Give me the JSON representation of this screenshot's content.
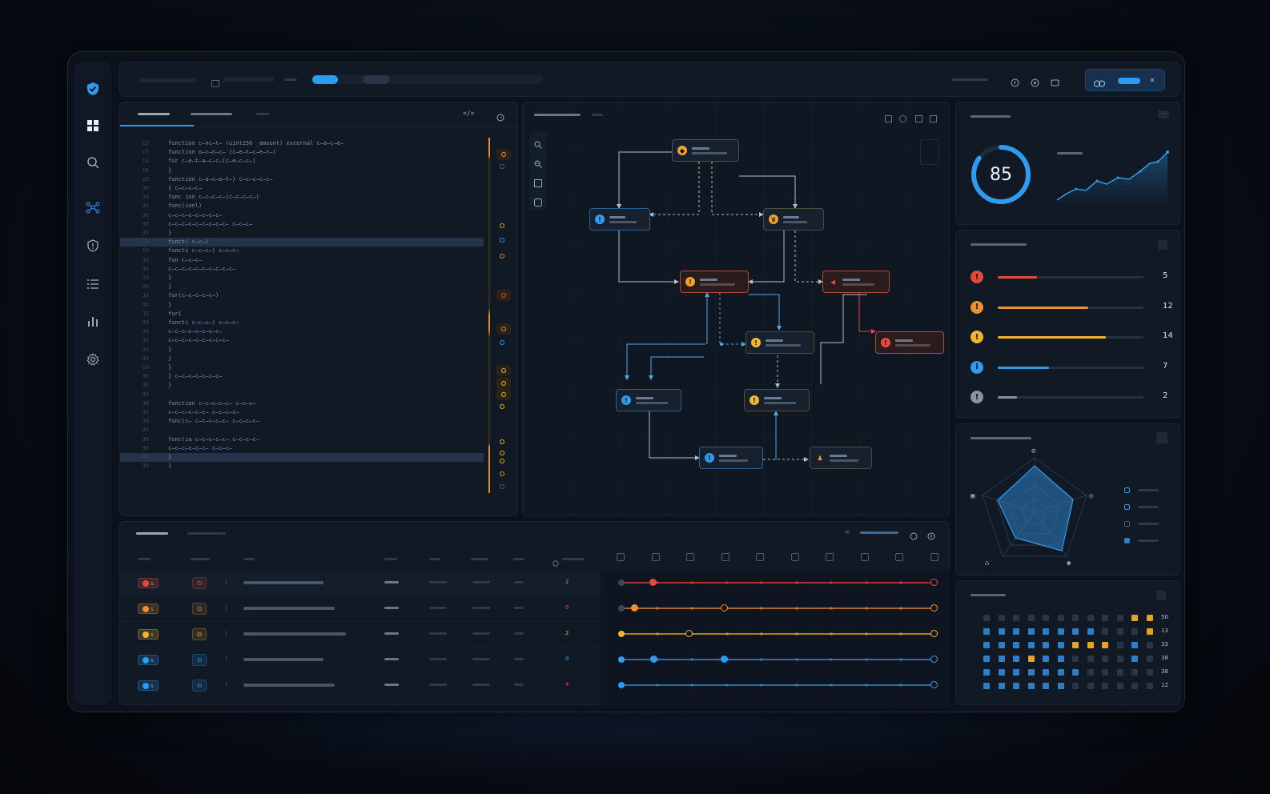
{
  "app": {
    "title": ""
  },
  "colors": {
    "accent": "#2d9cf0",
    "critical": "#e5493a",
    "high": "#f0922b",
    "medium": "#f2b52c",
    "low": "#2d9cf0",
    "info": "#8a93a3"
  },
  "sidebar": {
    "items": [
      {
        "icon": "grid-icon"
      },
      {
        "icon": "search-icon"
      },
      {
        "icon": "graph-icon"
      },
      {
        "icon": "shield-icon"
      },
      {
        "icon": "list-icon"
      },
      {
        "icon": "bar-chart-icon"
      },
      {
        "icon": "gear-icon"
      }
    ]
  },
  "editor": {
    "lines": [
      {
        "n": "15",
        "t": "function c̶nc̶t̶ (uint256 _amount) external c̶a̶c̶e̶"
      },
      {
        "n": "15",
        "t": "    function o̶c̶n̶c̶ (c̶e̶t̶c̶e̶r̶)"
      },
      {
        "n": "18",
        "t": "    fur c̶e̶t̶a̶c̶c̶(c̶e̶c̶c̶)"
      },
      {
        "n": "18",
        "t": "    }"
      },
      {
        "n": "18",
        "t": "    function c̶a̶c̶e̶t̶)  c̶c̶c̶c̶c̶"
      },
      {
        "n": "30",
        "t": "      {  c̶c̶c̶c̶"
      },
      {
        "n": "30",
        "t": "        func ion c̶c̶c̶c̶(c̶c̶c̶c̶)"
      },
      {
        "n": "30",
        "t": "          func(ionl)"
      },
      {
        "n": "30",
        "t": "            c̶c̶c̶c̶c̶c̶c̶c̶"
      },
      {
        "n": "38",
        "t": "            c̶c̶c̶c̶c̶c̶c̶c̶c̶  c̶c̶c̶"
      },
      {
        "n": "35",
        "t": "          }"
      },
      {
        "n": "18",
        "t": "          funct( c̶c̶)"
      },
      {
        "n": "15",
        "t": "            functi  c̶c̶c̶)  c̶c̶c̶"
      },
      {
        "n": "38",
        "t": "            fun c̶c̶c̶"
      },
      {
        "n": "38",
        "t": "              c̶c̶c̶c̶c̶c̶c̶c̶c̶c̶"
      },
      {
        "n": "38",
        "t": "            }"
      },
      {
        "n": "30",
        "t": "            }"
      },
      {
        "n": "38",
        "t": "            fur(c̶c̶c̶c̶c̶)"
      },
      {
        "n": "38",
        "t": "            }"
      },
      {
        "n": "35",
        "t": "          fur{"
      },
      {
        "n": "38",
        "t": "            functi  c̶c̶c̶)  c̶c̶c̶"
      },
      {
        "n": "30",
        "t": "              c̶c̶c̶c̶c̶c̶c̶c̶"
      },
      {
        "n": "30",
        "t": "              c̶c̶c̶c̶c̶c̶c̶c̶c̶"
      },
      {
        "n": "38",
        "t": "            }"
      },
      {
        "n": "38",
        "t": "          }"
      },
      {
        "n": "18",
        "t": "        }"
      },
      {
        "n": "30",
        "t": "        }   c̶c̶c̶c̶c̶c̶c̶"
      },
      {
        "n": "30",
        "t": "      }"
      },
      {
        "n": "38",
        "t": ""
      },
      {
        "n": "38",
        "t": "      function c̶c̶c̶c̶c̶  c̶c̶c̶"
      },
      {
        "n": "35",
        "t": "        c̶c̶c̶c̶c̶c̶  c̶c̶c̶c̶"
      },
      {
        "n": "38",
        "t": "        func(c̶  c̶c̶c̶c̶c̶  c̶c̶c̶c̶"
      },
      {
        "n": "30",
        "t": ""
      },
      {
        "n": "38",
        "t": "      func(ia c̶c̶c̶c̶c̶  c̶c̶c̶c̶"
      },
      {
        "n": "38",
        "t": "        c̶c̶c̶c̶c̶c̶  c̶c̶c̶"
      },
      {
        "n": "35",
        "t": "      }"
      },
      {
        "n": "38",
        "t": "    }"
      }
    ]
  },
  "score": {
    "value": "85"
  },
  "severity": {
    "items": [
      {
        "level": "critical",
        "count": "5",
        "fraction": 0.27
      },
      {
        "level": "high",
        "count": "12",
        "fraction": 0.62
      },
      {
        "level": "medium",
        "count": "14",
        "fraction": 0.74
      },
      {
        "level": "low",
        "count": "7",
        "fraction": 0.35
      },
      {
        "level": "info",
        "count": "2",
        "fraction": 0.13
      }
    ]
  },
  "table": {
    "rows": [
      {
        "level": "critical",
        "count": "2",
        "count_color": "#8a98ad"
      },
      {
        "level": "high",
        "count": "0",
        "count_color": "#e5493a"
      },
      {
        "level": "medium",
        "count": "2",
        "count_color": "#f2b52c"
      },
      {
        "level": "low",
        "count": "0",
        "count_color": "#2d9cf0"
      },
      {
        "level": "low",
        "count": "4",
        "count_color": "#e5493a"
      }
    ]
  },
  "heatmap": {
    "row_labels": [
      "50",
      "13",
      "33",
      "38",
      "38",
      "12"
    ]
  }
}
